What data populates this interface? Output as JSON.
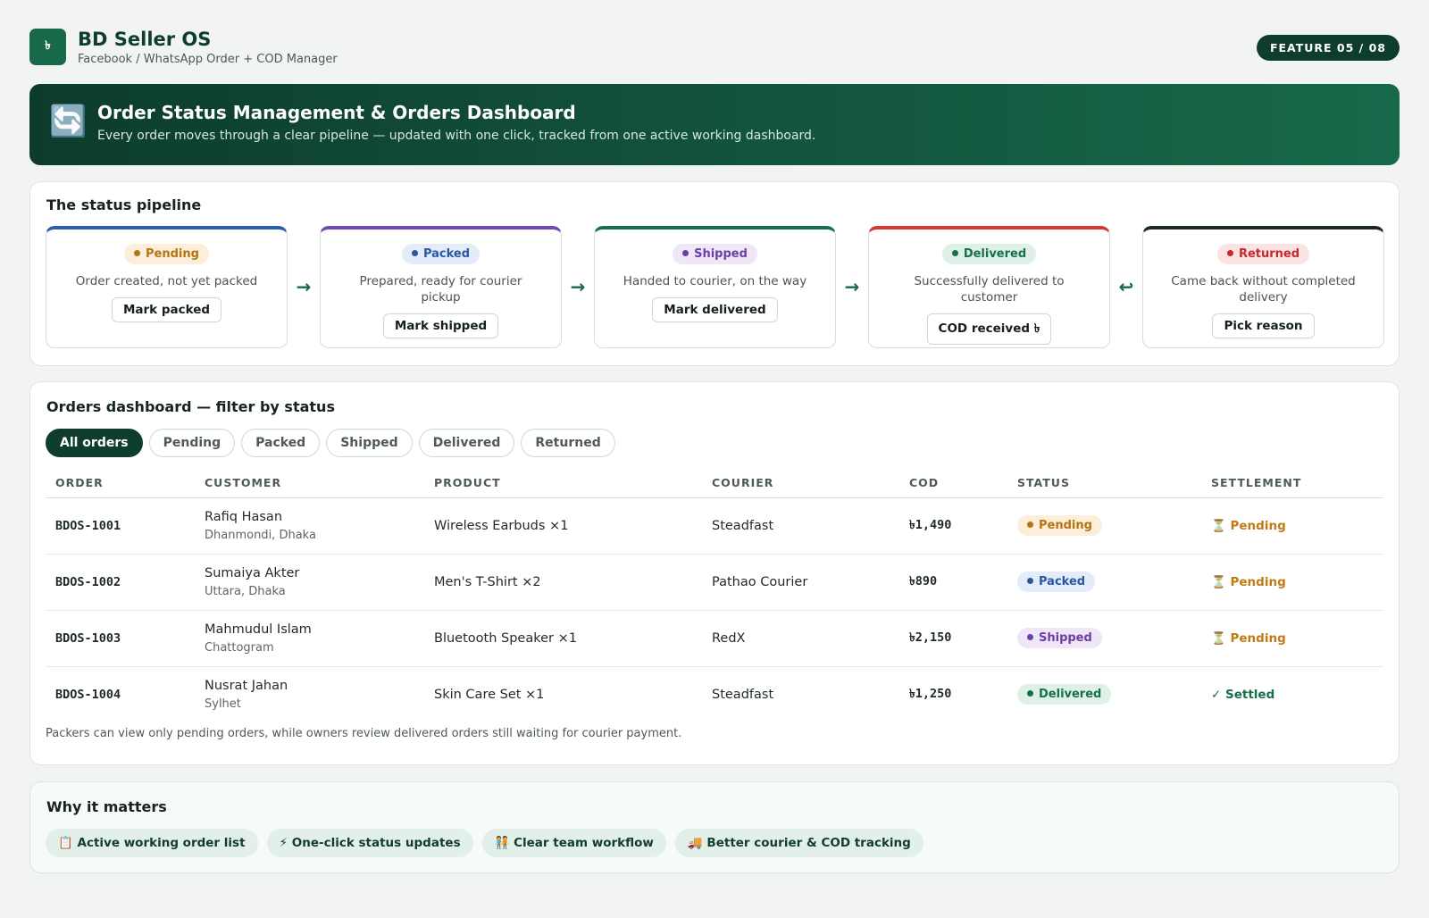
{
  "header": {
    "logo": "৳",
    "title": "BD Seller OS",
    "subtitle": "Facebook / WhatsApp Order + COD Manager",
    "badge": "FEATURE 05 / 08"
  },
  "banner": {
    "icon": "🔄",
    "title": "Order Status Management & Orders Dashboard",
    "subtitle": "Every order moves through a clear pipeline — updated with one click, tracked from one active working dashboard."
  },
  "pipeline": {
    "title": "The status pipeline",
    "stages": [
      {
        "status": "Pending",
        "description": "Order created, not yet packed",
        "action": "Mark packed"
      },
      {
        "status": "Packed",
        "description": "Prepared, ready for courier pickup",
        "action": "Mark shipped"
      },
      {
        "status": "Shipped",
        "description": "Handed to courier, on the way",
        "action": "Mark delivered"
      },
      {
        "status": "Delivered",
        "description": "Successfully delivered to customer",
        "action": "COD received ৳"
      },
      {
        "status": "Returned",
        "description": "Came back without completed delivery",
        "action": "Pick reason"
      }
    ],
    "arrows": [
      "→",
      "→",
      "→",
      "↩"
    ]
  },
  "dashboard": {
    "title": "Orders dashboard — filter by status",
    "filters": [
      "All orders",
      "Pending",
      "Packed",
      "Shipped",
      "Delivered",
      "Returned"
    ],
    "columns": [
      "ORDER",
      "CUSTOMER",
      "PRODUCT",
      "COURIER",
      "COD",
      "STATUS",
      "SETTLEMENT"
    ],
    "rows": [
      {
        "order": "BDOS-1001",
        "customer": "Rafiq Hasan",
        "location": "Dhanmondi, Dhaka",
        "product": "Wireless Earbuds ×1",
        "courier": "Steadfast",
        "cod": "৳1,490",
        "status": "Pending",
        "settlement": "⏳ Pending"
      },
      {
        "order": "BDOS-1002",
        "customer": "Sumaiya Akter",
        "location": "Uttara, Dhaka",
        "product": "Men's T-Shirt ×2",
        "courier": "Pathao Courier",
        "cod": "৳890",
        "status": "Packed",
        "settlement": "⏳ Pending"
      },
      {
        "order": "BDOS-1003",
        "customer": "Mahmudul Islam",
        "location": "Chattogram",
        "product": "Bluetooth Speaker ×1",
        "courier": "RedX",
        "cod": "৳2,150",
        "status": "Shipped",
        "settlement": "⏳ Pending"
      },
      {
        "order": "BDOS-1004",
        "customer": "Nusrat Jahan",
        "location": "Sylhet",
        "product": "Skin Care Set ×1",
        "courier": "Steadfast",
        "cod": "৳1,250",
        "status": "Delivered",
        "settlement": "✓ Settled"
      }
    ],
    "note": "Packers can view only pending orders, while owners review delivered orders still waiting for courier payment."
  },
  "benefits": {
    "title": "Why it matters",
    "items": [
      "📋 Active working order list",
      "⚡ One-click status updates",
      "🧑‍🤝‍🧑 Clear team workflow",
      "🚚 Better courier & COD tracking"
    ]
  }
}
